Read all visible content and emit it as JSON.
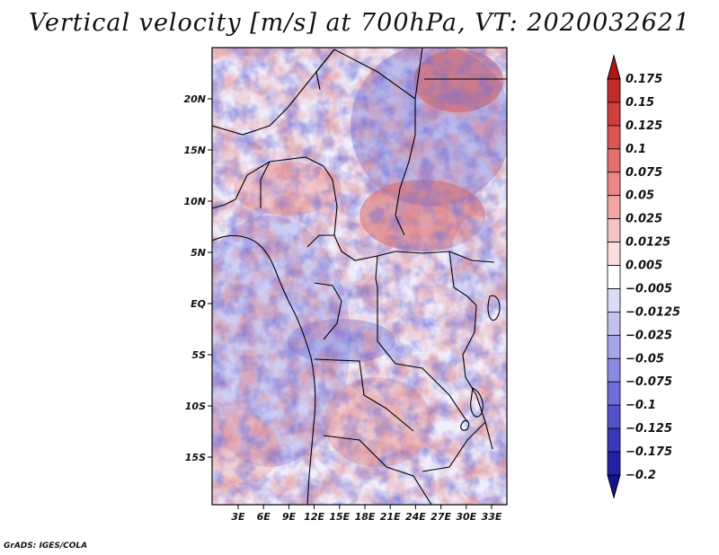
{
  "title": "Vertical velocity [m/s] at 700hPa, VT: 2020032621",
  "credit": "GrADS: IGES/COLA",
  "map": {
    "lat_ticks": [
      "20N",
      "15N",
      "10N",
      "5N",
      "EQ",
      "5S",
      "10S",
      "15S"
    ],
    "lon_ticks": [
      "3E",
      "6E",
      "9E",
      "12E",
      "15E",
      "18E",
      "21E",
      "24E",
      "27E",
      "30E",
      "33E"
    ],
    "field": "vertical velocity",
    "level": "700hPa",
    "valid_time": "2020032621"
  },
  "colorbar": {
    "labels": [
      "0.175",
      "0.15",
      "0.125",
      "0.1",
      "0.075",
      "0.05",
      "0.025",
      "0.0125",
      "0.005",
      "−0.005",
      "−0.0125",
      "−0.025",
      "−0.05",
      "−0.075",
      "−0.1",
      "−0.125",
      "−0.175",
      "−0.2"
    ],
    "colors": [
      "#b01818",
      "#c42a2a",
      "#d23e3e",
      "#dd5555",
      "#e56e6e",
      "#ec8888",
      "#f1a5a5",
      "#f6c4c4",
      "#fadfdf",
      "#ffffff",
      "#dcdcf6",
      "#c2c2f0",
      "#a6a6ea",
      "#8a8ae2",
      "#6e6eda",
      "#5252cc",
      "#3838bc",
      "#2222a6",
      "#14148e"
    ]
  }
}
